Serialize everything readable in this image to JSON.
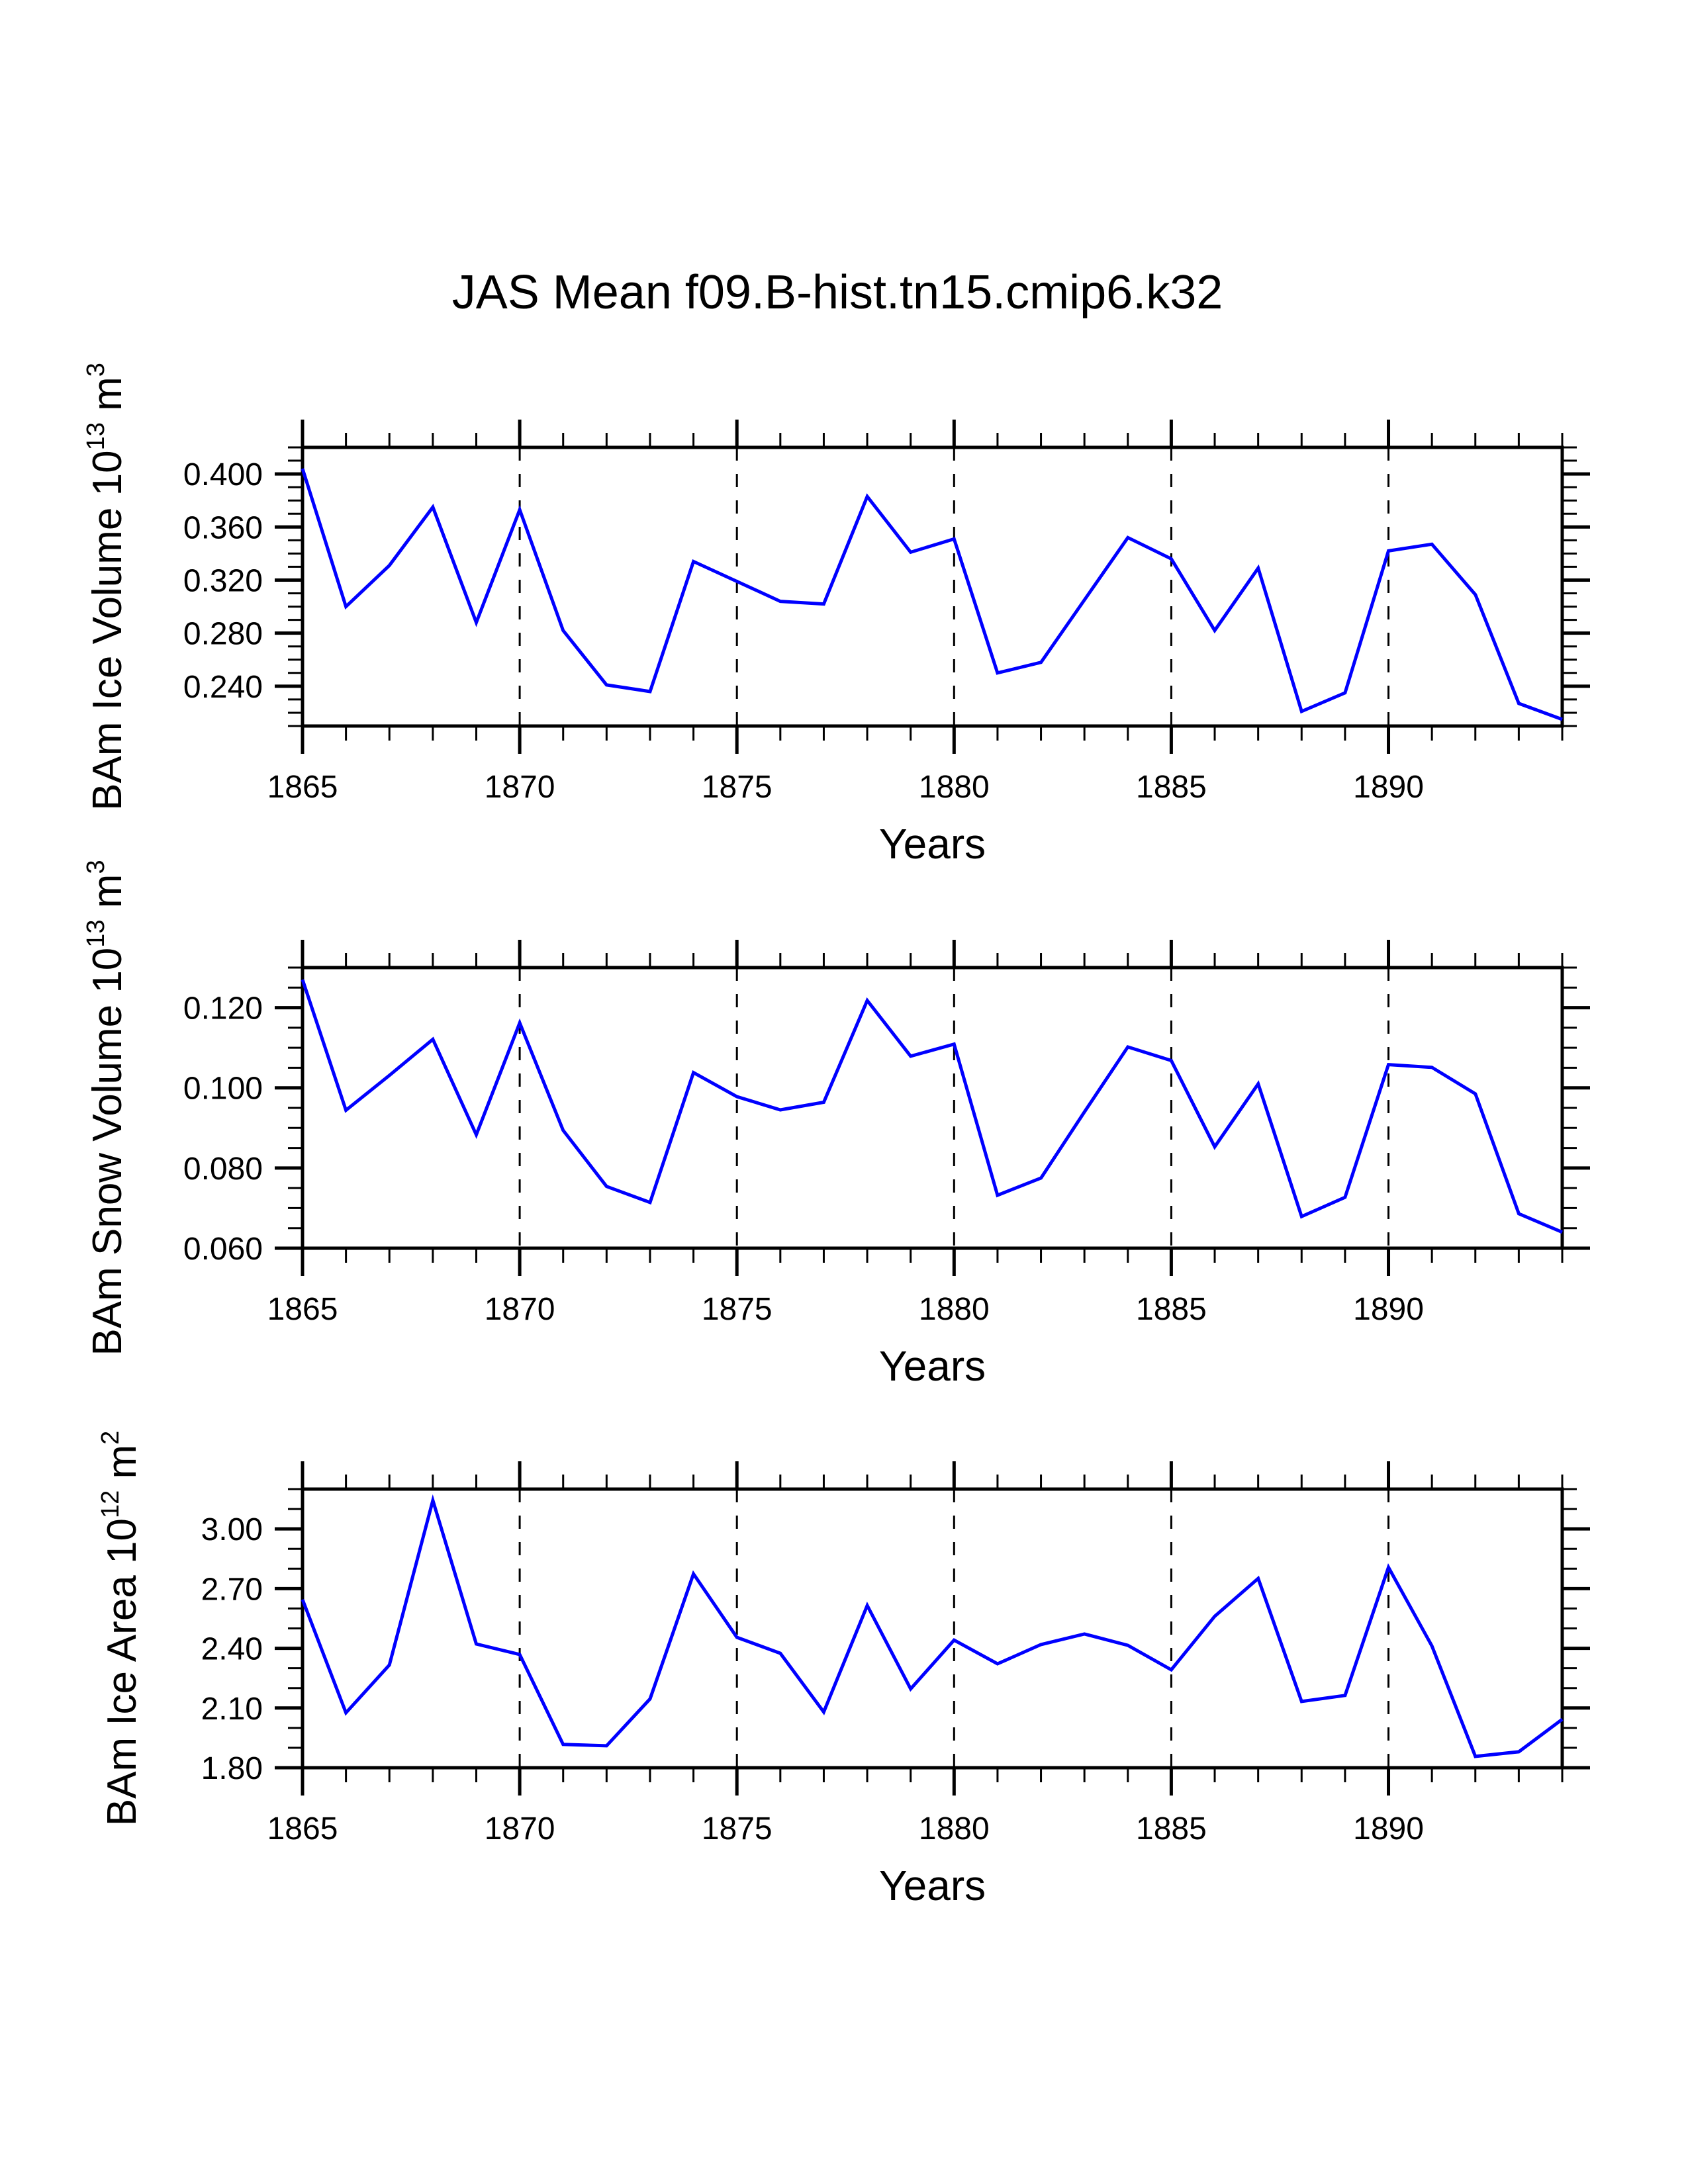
{
  "figure": {
    "title": "JAS Mean f09.B-hist.tn15.cmip6.k32",
    "line_color": "#0000FF",
    "grid_color": "#000000"
  },
  "chart_data": [
    {
      "type": "line",
      "title": "JAS Mean f09.B-hist.tn15.cmip6.k32",
      "xlabel": "Years",
      "ylabel": "BAm Ice Volume 10",
      "ylabel_exp": "13",
      "ylabel_unit": " m",
      "ylabel_unit_exp": "3",
      "xlim": [
        1865,
        1894
      ],
      "ylim": [
        0.21,
        0.42
      ],
      "xticks": [
        1865,
        1870,
        1875,
        1880,
        1885,
        1890
      ],
      "xtick_labels": [
        "1865",
        "1870",
        "1875",
        "1880",
        "1885",
        "1890"
      ],
      "yticks": [
        0.24,
        0.28,
        0.32,
        0.36,
        0.4
      ],
      "ytick_labels": [
        "0.240",
        "0.280",
        "0.320",
        "0.360",
        "0.400"
      ],
      "yminor_step": 0.01,
      "grid": "vertical dashed at major x ticks",
      "series": [
        {
          "name": "BAm Ice Volume",
          "x": [
            1865,
            1866,
            1867,
            1868,
            1869,
            1870,
            1871,
            1872,
            1873,
            1874,
            1875,
            1876,
            1877,
            1878,
            1879,
            1880,
            1881,
            1882,
            1883,
            1884,
            1885,
            1886,
            1887,
            1888,
            1889,
            1890,
            1891,
            1892,
            1893,
            1894
          ],
          "values": [
            0.404,
            0.3,
            0.331,
            0.375,
            0.288,
            0.373,
            0.282,
            0.241,
            0.236,
            0.334,
            0.319,
            0.304,
            0.302,
            0.383,
            0.341,
            0.351,
            0.25,
            0.258,
            0.305,
            0.352,
            0.336,
            0.282,
            0.329,
            0.221,
            0.235,
            0.342,
            0.347,
            0.309,
            0.227,
            0.215
          ]
        }
      ]
    },
    {
      "type": "line",
      "xlabel": "Years",
      "ylabel": "BAm Snow Volume 10",
      "ylabel_exp": "13",
      "ylabel_unit": " m",
      "ylabel_unit_exp": "3",
      "xlim": [
        1865,
        1894
      ],
      "ylim": [
        0.06,
        0.13
      ],
      "xticks": [
        1865,
        1870,
        1875,
        1880,
        1885,
        1890
      ],
      "xtick_labels": [
        "1865",
        "1870",
        "1875",
        "1880",
        "1885",
        "1890"
      ],
      "yticks": [
        0.06,
        0.08,
        0.1,
        0.12
      ],
      "ytick_labels": [
        "0.060",
        "0.080",
        "0.100",
        "0.120"
      ],
      "yminor_step": 0.005,
      "grid": "vertical dashed at major x ticks",
      "series": [
        {
          "name": "BAm Snow Volume",
          "x": [
            1865,
            1866,
            1867,
            1868,
            1869,
            1870,
            1871,
            1872,
            1873,
            1874,
            1875,
            1876,
            1877,
            1878,
            1879,
            1880,
            1881,
            1882,
            1883,
            1884,
            1885,
            1886,
            1887,
            1888,
            1889,
            1890,
            1891,
            1892,
            1893,
            1894
          ],
          "values": [
            0.127,
            0.0944,
            0.1031,
            0.1121,
            0.0883,
            0.1162,
            0.0894,
            0.0754,
            0.0714,
            0.1038,
            0.0978,
            0.0945,
            0.0964,
            0.1218,
            0.1079,
            0.1109,
            0.0732,
            0.0775,
            0.094,
            0.1102,
            0.1068,
            0.0853,
            0.101,
            0.0679,
            0.0727,
            0.1058,
            0.1051,
            0.0985,
            0.0686,
            0.064
          ]
        }
      ]
    },
    {
      "type": "line",
      "xlabel": "Years",
      "ylabel": "BAm Ice Area 10",
      "ylabel_exp": "12",
      "ylabel_unit": " m",
      "ylabel_unit_exp": "2",
      "xlim": [
        1865,
        1894
      ],
      "ylim": [
        1.8,
        3.2
      ],
      "xticks": [
        1865,
        1870,
        1875,
        1880,
        1885,
        1890
      ],
      "xtick_labels": [
        "1865",
        "1870",
        "1875",
        "1880",
        "1885",
        "1890"
      ],
      "yticks": [
        1.8,
        2.1,
        2.4,
        2.7,
        3.0
      ],
      "ytick_labels": [
        "1.80",
        "2.10",
        "2.40",
        "2.70",
        "3.00"
      ],
      "yminor_step": 0.1,
      "grid": "vertical dashed at major x ticks",
      "series": [
        {
          "name": "BAm Ice Area",
          "x": [
            1865,
            1866,
            1867,
            1868,
            1869,
            1870,
            1871,
            1872,
            1873,
            1874,
            1875,
            1876,
            1877,
            1878,
            1879,
            1880,
            1881,
            1882,
            1883,
            1884,
            1885,
            1886,
            1887,
            1888,
            1889,
            1890,
            1891,
            1892,
            1893,
            1894
          ],
          "values": [
            2.645,
            2.076,
            2.316,
            3.143,
            2.422,
            2.369,
            1.917,
            1.91,
            2.146,
            2.774,
            2.455,
            2.375,
            2.08,
            2.615,
            2.196,
            2.441,
            2.322,
            2.419,
            2.472,
            2.415,
            2.292,
            2.561,
            2.751,
            2.133,
            2.163,
            2.807,
            2.412,
            1.857,
            1.88,
            2.043
          ]
        }
      ]
    }
  ]
}
